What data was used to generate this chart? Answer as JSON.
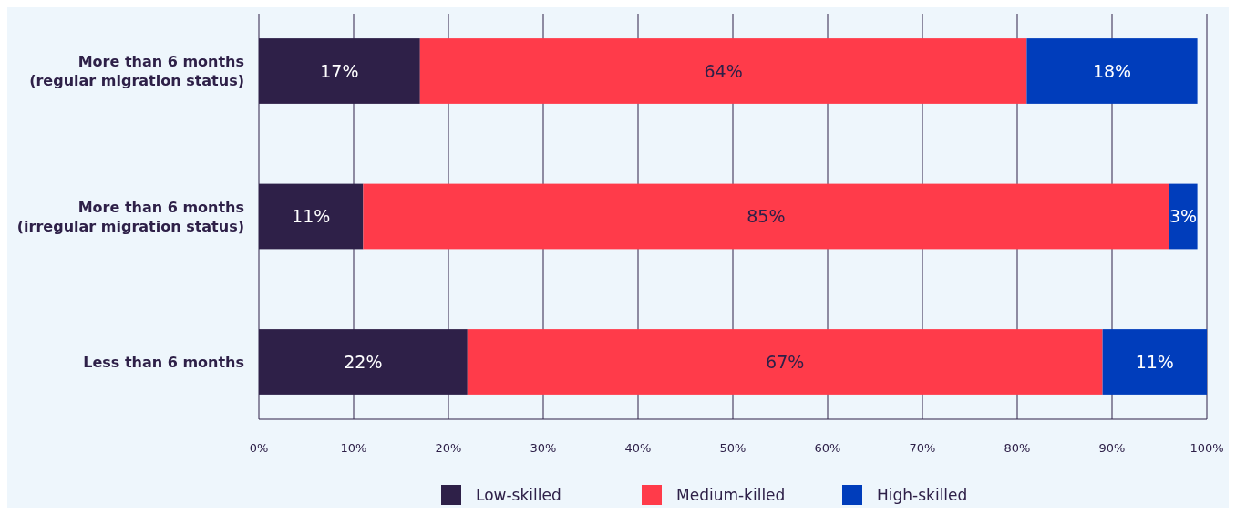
{
  "chart_data": {
    "type": "bar",
    "orientation": "horizontal",
    "stacked": true,
    "categories": [
      "More than 6 months\n(regular migration status)",
      "More than 6 months\n(irregular migration status)",
      "Less than 6 months"
    ],
    "series": [
      {
        "name": "Low-skilled",
        "color": "#2e2048",
        "values": [
          17,
          11,
          22
        ],
        "value_labels": [
          "17%",
          "11%",
          "22%"
        ]
      },
      {
        "name": "Medium-killed",
        "color": "#ff3b4a",
        "values": [
          64,
          85,
          67
        ],
        "value_labels": [
          "64%",
          "85%",
          "67%"
        ]
      },
      {
        "name": "High-skilled",
        "color": "#003dbb",
        "values": [
          18,
          3,
          11
        ],
        "value_labels": [
          "18%",
          "3%",
          "11%"
        ]
      }
    ],
    "xlim": [
      0,
      100
    ],
    "xticks": [
      {
        "value": 0,
        "label": "0%"
      },
      {
        "value": 10,
        "label": "10%"
      },
      {
        "value": 20,
        "label": "20%"
      },
      {
        "value": 30,
        "label": "30%"
      },
      {
        "value": 40,
        "label": "40%"
      },
      {
        "value": 50,
        "label": "50%"
      },
      {
        "value": 60,
        "label": "60%"
      },
      {
        "value": 70,
        "label": "70%"
      },
      {
        "value": 80,
        "label": "80%"
      },
      {
        "value": 90,
        "label": "90%"
      },
      {
        "value": 100,
        "label": "100%"
      }
    ],
    "grid": "x",
    "legend": "bottom"
  }
}
